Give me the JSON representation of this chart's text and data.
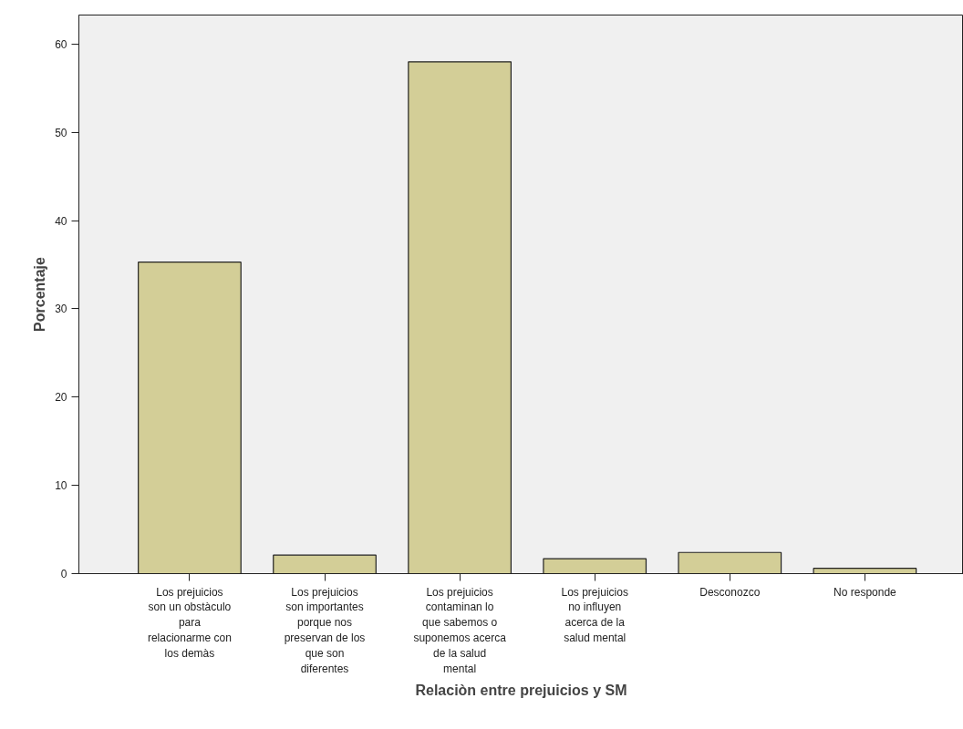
{
  "chart_data": {
    "type": "bar",
    "xlabel": "Relaciòn entre prejuicios y SM",
    "ylabel": "Porcentaje",
    "categories": [
      "Los prejuicios son un obstàculo para relacionarme con los demàs",
      "Los prejuicios son importantes porque nos preservan de los que son diferentes",
      "Los prejuicios contaminan lo que sabemos o suponemos acerca de la salud mental",
      "Los prejuicios no influyen acerca de la salud mental",
      "Desconozco",
      "No responde"
    ],
    "values": [
      35.3,
      2.1,
      58.0,
      1.7,
      2.4,
      0.6
    ],
    "color": "#d3ce97",
    "ylim": [
      0,
      63.3
    ],
    "yticks": [
      0,
      10,
      20,
      30,
      40,
      50,
      60
    ],
    "grid": false
  }
}
